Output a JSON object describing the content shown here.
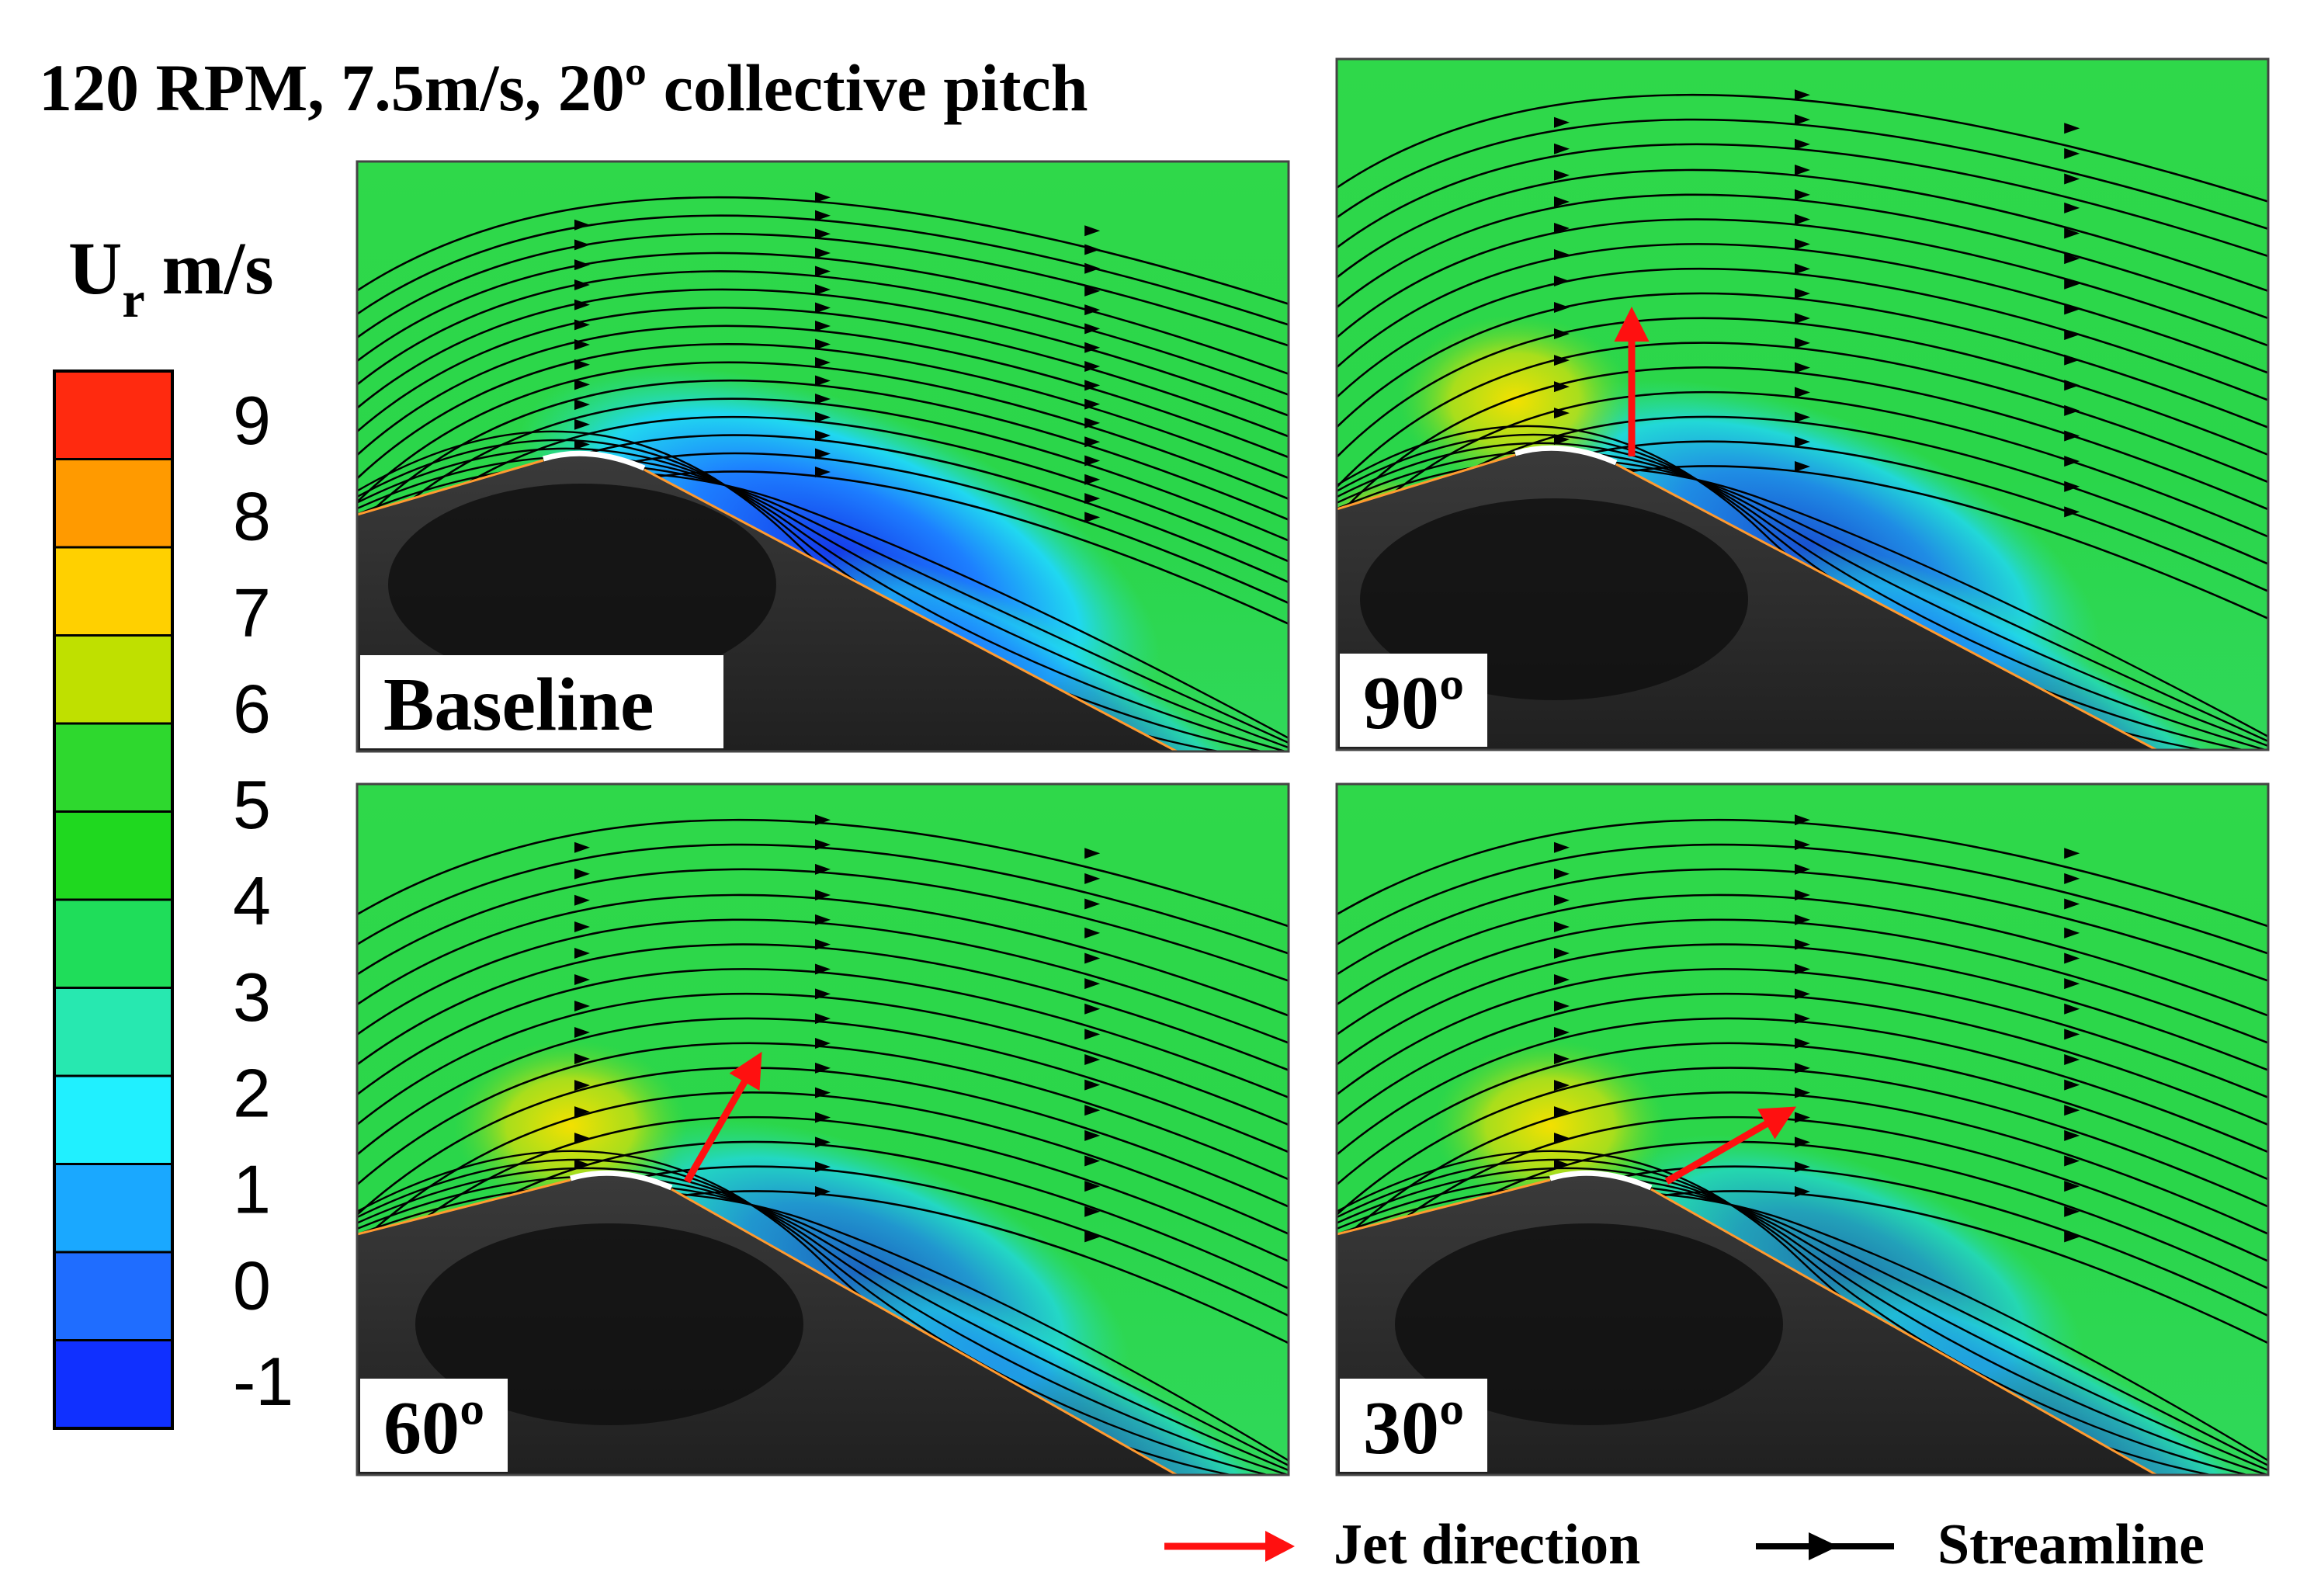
{
  "figure": {
    "title": "120 RPM, 7.5m/s, 20º collective pitch"
  },
  "colorbar": {
    "symbol": "U",
    "subscript": "r",
    "unit": "m/s",
    "ticks": [
      "9",
      "8",
      "7",
      "6",
      "5",
      "4",
      "3",
      "2",
      "1",
      "0",
      "-1"
    ],
    "range": [
      -1.5,
      9.5
    ],
    "band_colors": [
      "#ff2a0f",
      "#ff9a00",
      "#ffd000",
      "#bfe000",
      "#2ed82e",
      "#1fd81f",
      "#1fdd5a",
      "#27e8b0",
      "#20f0ff",
      "#1aa8ff",
      "#1f6dff",
      "#1030ff"
    ]
  },
  "panels": [
    {
      "label": "Baseline",
      "jet_angle": null
    },
    {
      "label": "90º",
      "jet_angle": 90
    },
    {
      "label": "60º",
      "jet_angle": 60
    },
    {
      "label": "30º",
      "jet_angle": 30
    }
  ],
  "legend": {
    "jet_label": "Jet direction",
    "streamline_label": "Streamline",
    "jet_color": "#ff1010",
    "streamline_color": "#000000"
  }
}
